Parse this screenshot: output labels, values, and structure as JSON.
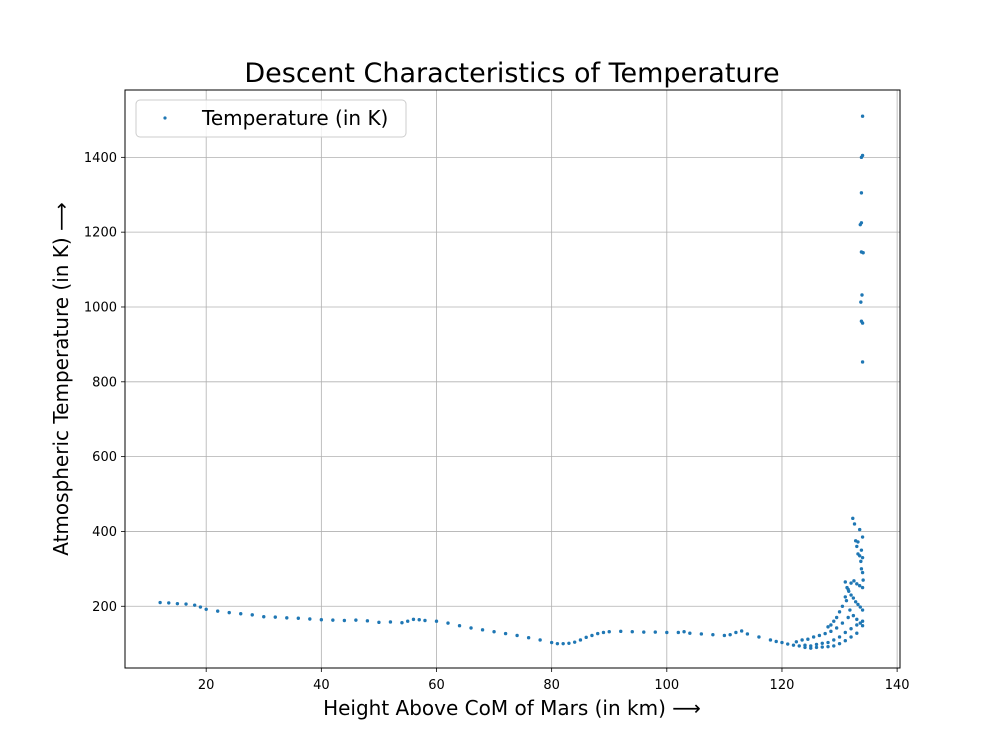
{
  "chart_data": {
    "type": "scatter",
    "title": "Descent Characteristics of Temperature",
    "xlabel": "Height Above CoM of Mars (in km)  ⟶",
    "ylabel": "Atmospheric Temperature (in K)  ⟶",
    "xlim": [
      5.9,
      140.5
    ],
    "ylim": [
      35,
      1580
    ],
    "xticks": [
      20,
      40,
      60,
      80,
      100,
      120,
      140
    ],
    "yticks": [
      200,
      400,
      600,
      800,
      1000,
      1200,
      1400
    ],
    "grid": true,
    "legend": {
      "position": "top-left",
      "entries": [
        "Temperature (in K)"
      ]
    },
    "colors": {
      "series": "#1f77b4",
      "grid": "#b0b0b0",
      "axes": "#000000"
    },
    "series": [
      {
        "name": "Temperature (in K)",
        "points": [
          [
            12.0,
            210
          ],
          [
            13.5,
            209
          ],
          [
            15.0,
            207
          ],
          [
            16.5,
            206
          ],
          [
            18.0,
            203
          ],
          [
            19.0,
            198
          ],
          [
            20.0,
            192
          ],
          [
            22.0,
            187
          ],
          [
            24.0,
            183
          ],
          [
            26.0,
            180
          ],
          [
            28.0,
            177
          ],
          [
            30.0,
            172
          ],
          [
            32.0,
            171
          ],
          [
            34.0,
            169
          ],
          [
            36.0,
            168
          ],
          [
            38.0,
            166
          ],
          [
            40.0,
            164
          ],
          [
            42.0,
            163
          ],
          [
            44.0,
            162
          ],
          [
            46.0,
            163
          ],
          [
            48.0,
            161
          ],
          [
            50.0,
            157
          ],
          [
            52.0,
            158
          ],
          [
            54.0,
            156
          ],
          [
            55.0,
            160
          ],
          [
            56.0,
            165
          ],
          [
            57.0,
            164
          ],
          [
            58.0,
            162
          ],
          [
            60.0,
            160
          ],
          [
            62.0,
            155
          ],
          [
            64.0,
            148
          ],
          [
            66.0,
            142
          ],
          [
            68.0,
            137
          ],
          [
            70.0,
            132
          ],
          [
            72.0,
            127
          ],
          [
            74.0,
            122
          ],
          [
            76.0,
            116
          ],
          [
            78.0,
            110
          ],
          [
            80.0,
            103
          ],
          [
            81.0,
            100
          ],
          [
            82.0,
            100
          ],
          [
            83.0,
            101
          ],
          [
            84.0,
            104
          ],
          [
            85.0,
            110
          ],
          [
            86.0,
            117
          ],
          [
            87.0,
            122
          ],
          [
            88.0,
            127
          ],
          [
            89.0,
            130
          ],
          [
            90.0,
            132
          ],
          [
            92.0,
            133
          ],
          [
            94.0,
            132
          ],
          [
            96.0,
            131
          ],
          [
            98.0,
            131
          ],
          [
            100.0,
            130
          ],
          [
            102.0,
            130
          ],
          [
            103.0,
            132
          ],
          [
            104.0,
            128
          ],
          [
            106.0,
            126
          ],
          [
            108.0,
            124
          ],
          [
            110.0,
            122
          ],
          [
            111.0,
            124
          ],
          [
            112.0,
            130
          ],
          [
            113.0,
            134
          ],
          [
            114.0,
            126
          ],
          [
            116.0,
            118
          ],
          [
            118.0,
            110
          ],
          [
            119.0,
            106
          ],
          [
            120.0,
            103
          ],
          [
            121.0,
            99
          ],
          [
            122.0,
            96
          ],
          [
            123.0,
            94
          ],
          [
            124.0,
            96
          ],
          [
            125.0,
            94
          ],
          [
            126.0,
            98
          ],
          [
            127.0,
            101
          ],
          [
            128.0,
            103
          ],
          [
            129.0,
            110
          ],
          [
            130.0,
            118
          ],
          [
            131.0,
            130
          ],
          [
            132.0,
            140
          ],
          [
            133.0,
            150
          ],
          [
            134.0,
            160
          ],
          [
            122.5,
            105
          ],
          [
            123.5,
            110
          ],
          [
            124.5,
            112
          ],
          [
            125.5,
            118
          ],
          [
            126.5,
            122
          ],
          [
            127.5,
            127
          ],
          [
            128.5,
            133
          ],
          [
            129.5,
            142
          ],
          [
            130.5,
            155
          ],
          [
            131.5,
            170
          ],
          [
            124.0,
            90
          ],
          [
            125.0,
            88
          ],
          [
            126.0,
            90
          ],
          [
            127.0,
            91
          ],
          [
            128.0,
            92
          ],
          [
            129.0,
            94
          ],
          [
            130.0,
            100
          ],
          [
            131.0,
            108
          ],
          [
            132.0,
            118
          ],
          [
            133.0,
            128
          ],
          [
            128.0,
            145
          ],
          [
            128.5,
            150
          ],
          [
            129.0,
            160
          ],
          [
            129.5,
            170
          ],
          [
            130.0,
            185
          ],
          [
            130.5,
            200
          ],
          [
            131.0,
            225
          ],
          [
            131.5,
            245
          ],
          [
            132.0,
            262
          ],
          [
            132.5,
            268
          ],
          [
            133.0,
            260
          ],
          [
            133.5,
            255
          ],
          [
            134.0,
            250
          ],
          [
            131.2,
            215
          ],
          [
            131.8,
            190
          ],
          [
            132.4,
            175
          ],
          [
            133.0,
            165
          ],
          [
            133.6,
            155
          ],
          [
            134.0,
            148
          ],
          [
            131.0,
            265
          ],
          [
            131.3,
            250
          ],
          [
            131.6,
            240
          ],
          [
            132.0,
            230
          ],
          [
            132.4,
            222
          ],
          [
            132.8,
            212
          ],
          [
            133.2,
            205
          ],
          [
            133.6,
            198
          ],
          [
            134.0,
            190
          ],
          [
            132.3,
            435
          ],
          [
            132.6,
            420
          ],
          [
            132.8,
            375
          ],
          [
            133.0,
            360
          ],
          [
            133.2,
            340
          ],
          [
            133.5,
            335
          ],
          [
            133.7,
            320
          ],
          [
            133.8,
            300
          ],
          [
            134.0,
            290
          ],
          [
            134.1,
            270
          ],
          [
            133.5,
            405
          ],
          [
            134.0,
            385
          ],
          [
            133.2,
            372
          ],
          [
            133.8,
            350
          ],
          [
            134.0,
            330
          ],
          [
            134.0,
            1510
          ],
          [
            134.0,
            1405
          ],
          [
            133.8,
            1400
          ],
          [
            133.8,
            1305
          ],
          [
            133.8,
            1225
          ],
          [
            133.6,
            1220
          ],
          [
            133.8,
            1147
          ],
          [
            134.1,
            1145
          ],
          [
            133.9,
            1032
          ],
          [
            133.7,
            1013
          ],
          [
            133.8,
            962
          ],
          [
            134.0,
            957
          ],
          [
            134.0,
            853
          ]
        ]
      }
    ]
  }
}
